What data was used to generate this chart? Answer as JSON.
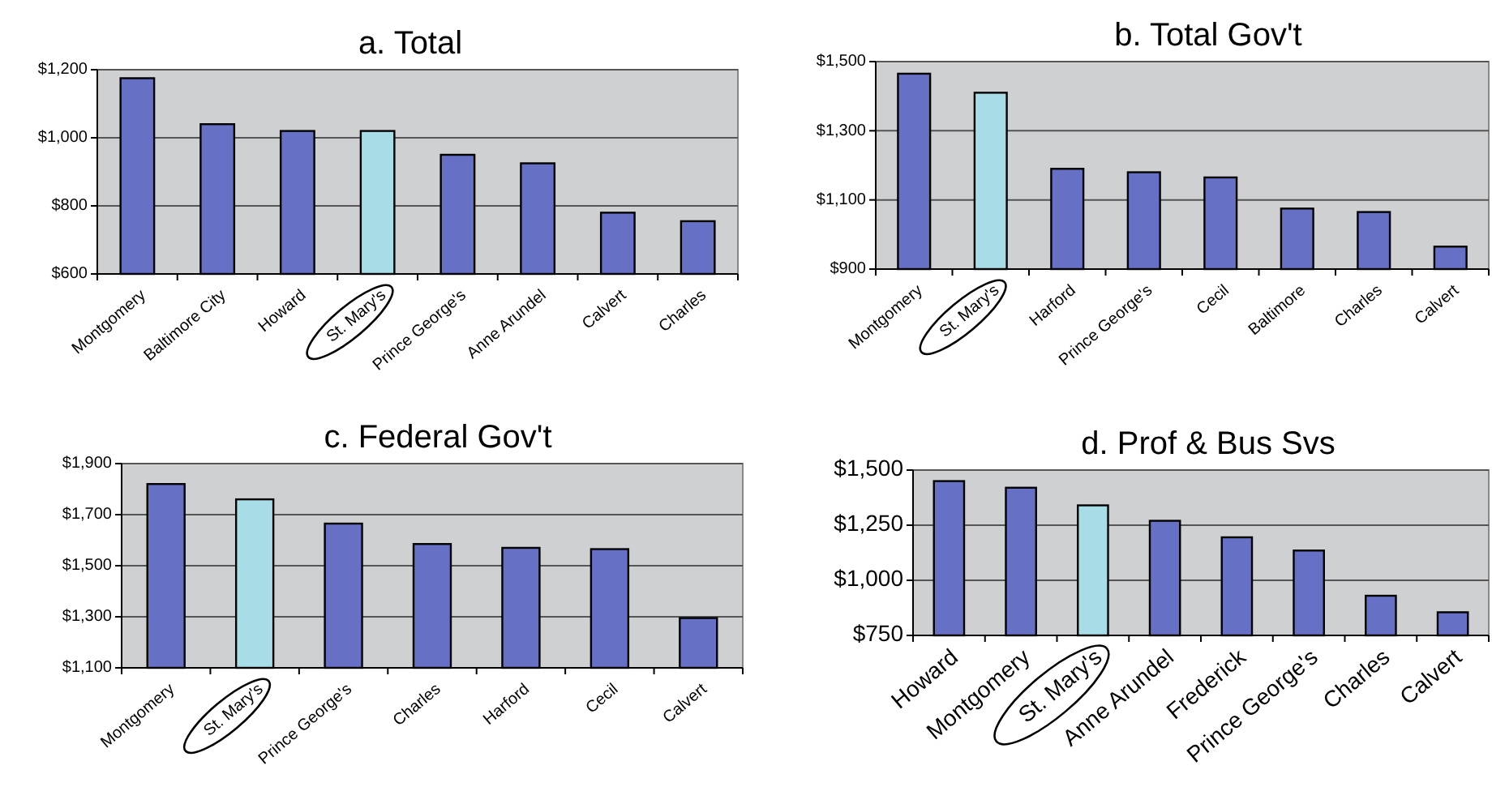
{
  "chart_data": [
    {
      "type": "bar",
      "title": "a. Total",
      "categories": [
        "Montgomery",
        "Baltimore City",
        "Howard",
        "St. Mary's",
        "Prince George's",
        "Anne Arundel",
        "Calvert",
        "Charles"
      ],
      "values": [
        1175,
        1040,
        1020,
        1020,
        950,
        925,
        780,
        755
      ],
      "colors": [
        "#6670c4",
        "#6670c4",
        "#6670c4",
        "#a8dde8",
        "#6670c4",
        "#6670c4",
        "#6670c4",
        "#6670c4"
      ],
      "ylim": [
        600,
        1200
      ],
      "yticks": [
        {
          "value": 600,
          "label": "$600"
        },
        {
          "value": 800,
          "label": "$800"
        },
        {
          "value": 1000,
          "label": "$1,000"
        },
        {
          "value": 1200,
          "label": "$1,200"
        }
      ],
      "grid": "y"
    },
    {
      "type": "bar",
      "title": "b. Total Gov't",
      "categories": [
        "Montgomery",
        "St. Mary's",
        "Harford",
        "Prince George's",
        "Cecil",
        "Baltimore",
        "Charles",
        "Calvert"
      ],
      "values": [
        1465,
        1410,
        1190,
        1180,
        1165,
        1075,
        1065,
        965
      ],
      "colors": [
        "#6670c4",
        "#a8dde8",
        "#6670c4",
        "#6670c4",
        "#6670c4",
        "#6670c4",
        "#6670c4",
        "#6670c4"
      ],
      "ylim": [
        900,
        1500
      ],
      "yticks": [
        {
          "value": 900,
          "label": "$900"
        },
        {
          "value": 1100,
          "label": "$1,100"
        },
        {
          "value": 1300,
          "label": "$1,300"
        },
        {
          "value": 1500,
          "label": "$1,500"
        }
      ],
      "grid": "y"
    },
    {
      "type": "bar",
      "title": "c. Federal Gov't",
      "categories": [
        "Montgomery",
        "St. Mary's",
        "Prince George's",
        "Charles",
        "Harford",
        "Cecil",
        "Calvert"
      ],
      "values": [
        1820,
        1760,
        1665,
        1585,
        1570,
        1565,
        1295
      ],
      "colors": [
        "#6670c4",
        "#a8dde8",
        "#6670c4",
        "#6670c4",
        "#6670c4",
        "#6670c4",
        "#6670c4"
      ],
      "ylim": [
        1100,
        1900
      ],
      "yticks": [
        {
          "value": 1100,
          "label": "$1,100"
        },
        {
          "value": 1300,
          "label": "$1,300"
        },
        {
          "value": 1500,
          "label": "$1,500"
        },
        {
          "value": 1700,
          "label": "$1,700"
        },
        {
          "value": 1900,
          "label": "$1,900"
        }
      ],
      "grid": "y"
    },
    {
      "type": "bar",
      "title": "d. Prof & Bus Svs",
      "categories": [
        "Howard",
        "Montgomery",
        "St. Mary's",
        "Anne Arundel",
        "Frederick",
        "Prince George's",
        "Charles",
        "Calvert"
      ],
      "values": [
        1450,
        1420,
        1340,
        1270,
        1195,
        1135,
        930,
        855
      ],
      "colors": [
        "#6670c4",
        "#6670c4",
        "#a8dde8",
        "#6670c4",
        "#6670c4",
        "#6670c4",
        "#6670c4",
        "#6670c4"
      ],
      "ylim": [
        750,
        1500
      ],
      "yticks": [
        {
          "value": 750,
          "label": "$750"
        },
        {
          "value": 1000,
          "label": "$1,000"
        },
        {
          "value": 1250,
          "label": "$1,250"
        },
        {
          "value": 1500,
          "label": "$1,500"
        }
      ],
      "grid": "y"
    }
  ]
}
